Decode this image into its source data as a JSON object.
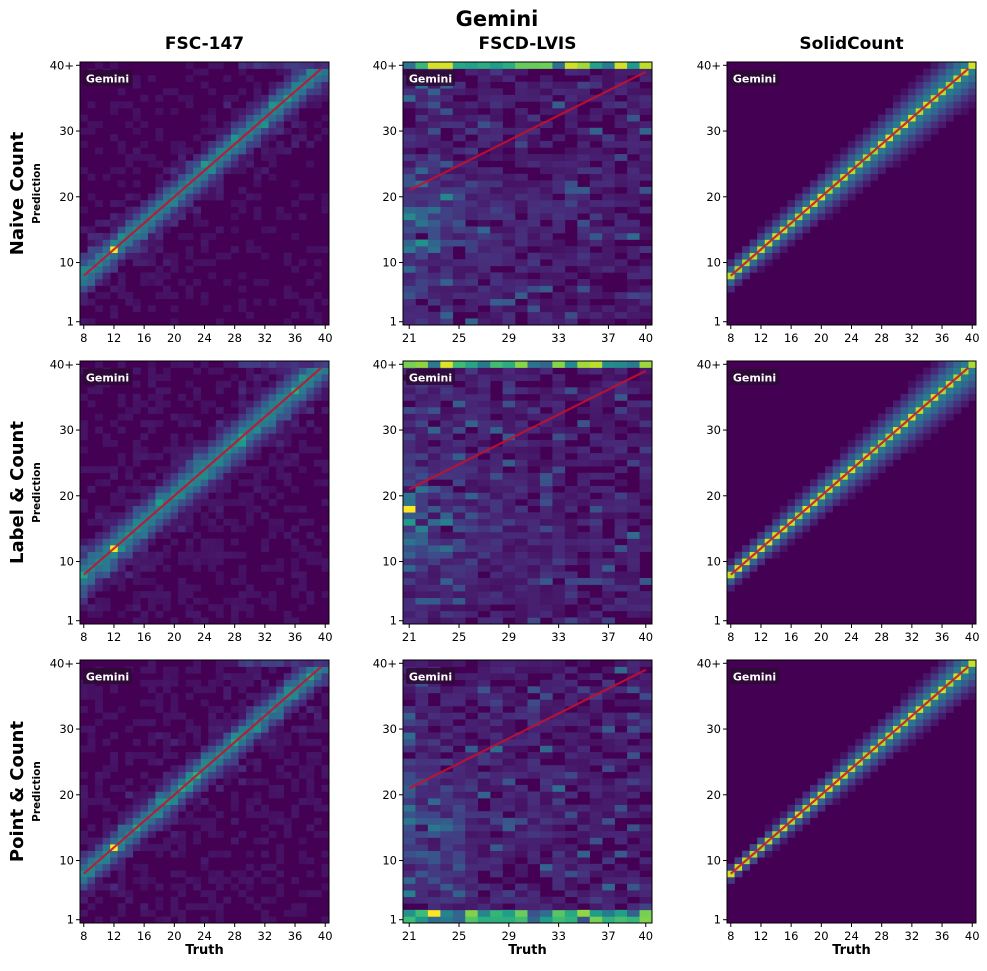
{
  "figure_title": "Gemini",
  "column_titles": [
    "FSC-147",
    "FSCD-LVIS",
    "SolidCount"
  ],
  "row_titles": [
    "Naive Count",
    "Label & Count",
    "Point & Count"
  ],
  "y_axis_label": "Prediction",
  "x_axis_label": "Truth",
  "badge_text": "Gemini",
  "colors": {
    "heat_low": "#440154",
    "heat_mid": "#21918c",
    "heat_high": "#fde725",
    "diagonal": "#c8102e",
    "badge_bg": "#2b0a33"
  },
  "chart_data": [
    {
      "type": "heatmap",
      "dataset": "FSC-147",
      "method": "Naive Count",
      "xlabel": "Truth",
      "ylabel": "Prediction",
      "x_range": [
        8,
        40
      ],
      "y_range": [
        1,
        40
      ],
      "x_ticks": [
        "8",
        "12",
        "16",
        "20",
        "24",
        "28",
        "32",
        "36",
        "40"
      ],
      "y_ticks": [
        "1",
        "10",
        "20",
        "30",
        "40+"
      ],
      "pattern": "diag",
      "spread": 1.6,
      "tail": 0.05,
      "peaks": [
        {
          "x": 12,
          "y": 12
        }
      ],
      "diagonal": [
        [
          8,
          8
        ],
        [
          39.5,
          39.5
        ]
      ]
    },
    {
      "type": "heatmap",
      "dataset": "FSCD-LVIS",
      "method": "Naive Count",
      "xlabel": "Truth",
      "ylabel": "Prediction",
      "x_range": [
        21,
        40
      ],
      "y_range": [
        1,
        40
      ],
      "x_ticks": [
        "21",
        "25",
        "29",
        "33",
        "37",
        "40"
      ],
      "y_ticks": [
        "1",
        "10",
        "20",
        "30",
        "40+"
      ],
      "pattern": "scatter",
      "top_row": true,
      "bottom_row": false,
      "peaks": [],
      "diagonal": [
        [
          21,
          21
        ],
        [
          40,
          39
        ]
      ]
    },
    {
      "type": "heatmap",
      "dataset": "SolidCount",
      "method": "Naive Count",
      "xlabel": "Truth",
      "ylabel": "Prediction",
      "x_range": [
        8,
        40
      ],
      "y_range": [
        1,
        40
      ],
      "x_ticks": [
        "8",
        "12",
        "16",
        "20",
        "24",
        "28",
        "32",
        "36",
        "40"
      ],
      "y_ticks": [
        "1",
        "10",
        "20",
        "30",
        "40+"
      ],
      "pattern": "solid",
      "spread": 1.2,
      "peaks": [],
      "diagonal": [
        [
          8,
          8
        ],
        [
          39.5,
          39.5
        ]
      ]
    },
    {
      "type": "heatmap",
      "dataset": "FSC-147",
      "method": "Label & Count",
      "xlabel": "Truth",
      "ylabel": "Prediction",
      "x_range": [
        8,
        40
      ],
      "y_range": [
        1,
        40
      ],
      "x_ticks": [
        "8",
        "12",
        "16",
        "20",
        "24",
        "28",
        "32",
        "36",
        "40"
      ],
      "y_ticks": [
        "1",
        "10",
        "20",
        "30",
        "40+"
      ],
      "pattern": "diag",
      "spread": 1.9,
      "tail": 0.06,
      "peaks": [
        {
          "x": 12,
          "y": 12
        }
      ],
      "diagonal": [
        [
          8,
          8
        ],
        [
          39.5,
          39.5
        ]
      ]
    },
    {
      "type": "heatmap",
      "dataset": "FSCD-LVIS",
      "method": "Label & Count",
      "xlabel": "Truth",
      "ylabel": "Prediction",
      "x_range": [
        21,
        40
      ],
      "y_range": [
        1,
        40
      ],
      "x_ticks": [
        "21",
        "25",
        "29",
        "33",
        "37",
        "40"
      ],
      "y_ticks": [
        "1",
        "10",
        "20",
        "30",
        "40+"
      ],
      "pattern": "scatter",
      "top_row": true,
      "bottom_row": false,
      "peaks": [
        {
          "x": 21,
          "y": 18
        }
      ],
      "diagonal": [
        [
          21,
          21
        ],
        [
          40,
          39
        ]
      ]
    },
    {
      "type": "heatmap",
      "dataset": "SolidCount",
      "method": "Label & Count",
      "xlabel": "Truth",
      "ylabel": "Prediction",
      "x_range": [
        8,
        40
      ],
      "y_range": [
        1,
        40
      ],
      "x_ticks": [
        "8",
        "12",
        "16",
        "20",
        "24",
        "28",
        "32",
        "36",
        "40"
      ],
      "y_ticks": [
        "1",
        "10",
        "20",
        "30",
        "40+"
      ],
      "pattern": "solid",
      "spread": 1.1,
      "peaks": [],
      "diagonal": [
        [
          8,
          8
        ],
        [
          39.5,
          39.5
        ]
      ]
    },
    {
      "type": "heatmap",
      "dataset": "FSC-147",
      "method": "Point & Count",
      "xlabel": "Truth",
      "ylabel": "Prediction",
      "x_range": [
        8,
        40
      ],
      "y_range": [
        1,
        40
      ],
      "x_ticks": [
        "8",
        "12",
        "16",
        "20",
        "24",
        "28",
        "32",
        "36",
        "40"
      ],
      "y_ticks": [
        "1",
        "10",
        "20",
        "30",
        "40+"
      ],
      "pattern": "diag",
      "spread": 1.5,
      "tail": 0.06,
      "peaks": [
        {
          "x": 12,
          "y": 12
        }
      ],
      "diagonal": [
        [
          8,
          8
        ],
        [
          39.5,
          39.5
        ]
      ]
    },
    {
      "type": "heatmap",
      "dataset": "FSCD-LVIS",
      "method": "Point & Count",
      "xlabel": "Truth",
      "ylabel": "Prediction",
      "x_range": [
        21,
        40
      ],
      "y_range": [
        1,
        40
      ],
      "x_ticks": [
        "21",
        "25",
        "29",
        "33",
        "37",
        "40"
      ],
      "y_ticks": [
        "1",
        "10",
        "20",
        "30",
        "40+"
      ],
      "pattern": "scatter",
      "top_row": false,
      "bottom_row": true,
      "peaks": [
        {
          "x": 23,
          "y": 2
        }
      ],
      "diagonal": [
        [
          21,
          21
        ],
        [
          40,
          39
        ]
      ]
    },
    {
      "type": "heatmap",
      "dataset": "SolidCount",
      "method": "Point & Count",
      "xlabel": "Truth",
      "ylabel": "Prediction",
      "x_range": [
        8,
        40
      ],
      "y_range": [
        1,
        40
      ],
      "x_ticks": [
        "8",
        "12",
        "16",
        "20",
        "24",
        "28",
        "32",
        "36",
        "40"
      ],
      "y_ticks": [
        "1",
        "10",
        "20",
        "30",
        "40+"
      ],
      "pattern": "solid",
      "spread": 0.7,
      "peaks": [],
      "diagonal": [
        [
          8,
          8
        ],
        [
          39.5,
          39.5
        ]
      ]
    }
  ]
}
